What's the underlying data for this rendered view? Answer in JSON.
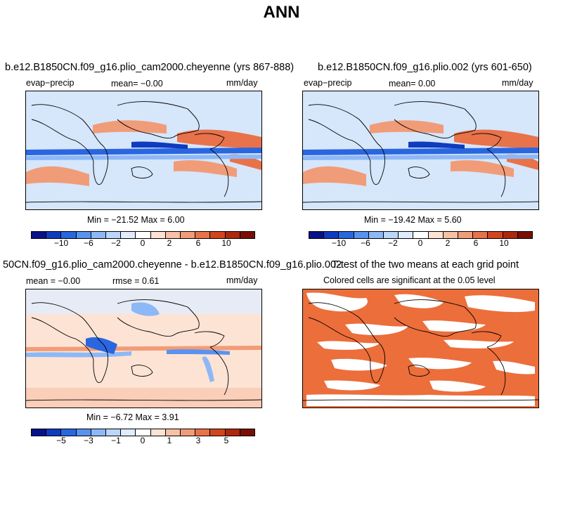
{
  "figure": {
    "title": "ANN"
  },
  "panels": {
    "p1": {
      "title": "b.e12.B1850CN.f09_g16.plio_cam2000.cheyenne (yrs 867-888)",
      "left_label": "evap−precip",
      "mean_text": "mean=   −0.00",
      "units": "mm/day",
      "minmax": "Min = −21.52  Max =    6.00"
    },
    "p2": {
      "title": "b.e12.B1850CN.f09_g16.plio.002 (yrs 601-650)",
      "left_label": "evap−precip",
      "mean_text": "mean=    0.00",
      "units": "mm/day",
      "minmax": "Min = −19.42  Max =    5.60"
    },
    "p3": {
      "title": "50CN.f09_g16.plio_cam2000.cheyenne - b.e12.B1850CN.f09_g16.plio.002",
      "left_label": "mean =   −0.00",
      "rmse_text": "rmse =    0.61",
      "units": "mm/day",
      "minmax": "Min =   −6.72  Max =    3.91"
    },
    "p4": {
      "title": "T-test of the two means at each grid point",
      "subtitle": "Colored cells are significant at the 0.05 level"
    }
  },
  "colorbars": {
    "top_ticks": [
      "−10",
      "−6",
      "−2",
      "0",
      "2",
      "6",
      "10"
    ],
    "diff_ticks": [
      "−5",
      "−3",
      "−1",
      "0",
      "1",
      "3",
      "5"
    ],
    "colors": [
      "#08118c",
      "#0f3bbf",
      "#2a66e0",
      "#5a92f0",
      "#8db8f7",
      "#bcd6fb",
      "#e0ecfd",
      "#ffffff",
      "#fde3d4",
      "#f8c0a5",
      "#f19c78",
      "#e8724a",
      "#d2451f",
      "#b0270c",
      "#7a0e04"
    ]
  },
  "chart_data": [
    {
      "type": "heatmap",
      "title": "b.e12.B1850CN.f09_g16.plio_cam2000.cheyenne (yrs 867-888)",
      "variable": "evap-precip",
      "units": "mm/day",
      "mean": -0.0,
      "min": -21.52,
      "max": 6.0,
      "colorbar_levels": [
        -12,
        -10,
        -8,
        -6,
        -4,
        -2,
        -1,
        0,
        1,
        2,
        4,
        6,
        8,
        10,
        12
      ]
    },
    {
      "type": "heatmap",
      "title": "b.e12.B1850CN.f09_g16.plio.002 (yrs 601-650)",
      "variable": "evap-precip",
      "units": "mm/day",
      "mean": 0.0,
      "min": -19.42,
      "max": 5.6,
      "colorbar_levels": [
        -12,
        -10,
        -8,
        -6,
        -4,
        -2,
        -1,
        0,
        1,
        2,
        4,
        6,
        8,
        10,
        12
      ]
    },
    {
      "type": "heatmap",
      "title": "50CN.f09_g16.plio_cam2000.cheyenne - b.e12.B1850CN.f09_g16.plio.002",
      "units": "mm/day",
      "mean": -0.0,
      "rmse": 0.61,
      "min": -6.72,
      "max": 3.91,
      "colorbar_levels": [
        -6,
        -5,
        -4,
        -3,
        -2,
        -1,
        -0.5,
        0,
        0.5,
        1,
        2,
        3,
        4,
        5,
        6
      ]
    },
    {
      "type": "heatmap",
      "title": "T-test of the two means at each grid point",
      "subtitle": "Colored cells are significant at the 0.05 level",
      "significance_level": 0.05
    }
  ]
}
